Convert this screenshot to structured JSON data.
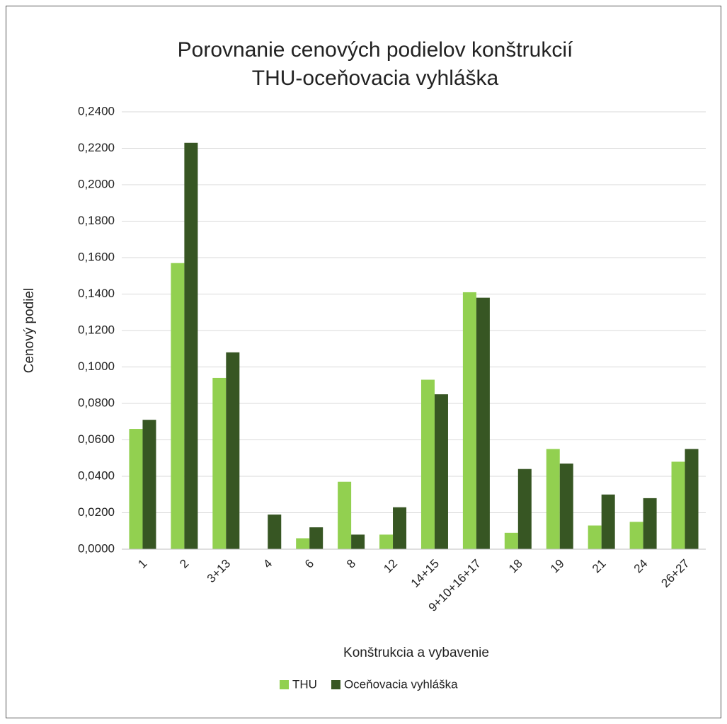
{
  "chart_data": {
    "type": "bar",
    "title": [
      "Porovnanie cenových podielov konštrukcií",
      "THU-oceňovacia vyhláška"
    ],
    "x_label": "Konštrukcia a vybavenie",
    "y_label": "Cenový podiel",
    "categories": [
      "1",
      "2",
      "3+13",
      "4",
      "6",
      "8",
      "12",
      "14+15",
      "9+10+16+17",
      "18",
      "19",
      "21",
      "24",
      "26+27"
    ],
    "series": [
      {
        "name": "THU",
        "color": "#92d050",
        "values": [
          0.066,
          0.157,
          0.094,
          0,
          0.006,
          0.037,
          0.008,
          0.093,
          0.141,
          0.009,
          0.055,
          0.013,
          0.015,
          0.048
        ]
      },
      {
        "name": "Oceňovacia vyhláška",
        "color": "#375623",
        "values": [
          0.071,
          0.223,
          0.108,
          0.019,
          0.012,
          0.008,
          0.023,
          0.085,
          0.138,
          0.044,
          0.047,
          0.03,
          0.028,
          0.055
        ]
      }
    ],
    "ylim": [
      0,
      0.24
    ],
    "yticks": [
      {
        "value": 0,
        "label": "0,0000"
      },
      {
        "value": 0.02,
        "label": "0,0200"
      },
      {
        "value": 0.04,
        "label": "0,0400"
      },
      {
        "value": 0.06,
        "label": "0,0600"
      },
      {
        "value": 0.08,
        "label": "0,0800"
      },
      {
        "value": 0.1,
        "label": "0,1000"
      },
      {
        "value": 0.12,
        "label": "0,1200"
      },
      {
        "value": 0.14,
        "label": "0,1400"
      },
      {
        "value": 0.16,
        "label": "0,1600"
      },
      {
        "value": 0.18,
        "label": "0,1800"
      },
      {
        "value": 0.2,
        "label": "0,2000"
      },
      {
        "value": 0.22,
        "label": "0,2200"
      },
      {
        "value": 0.24,
        "label": "0,2400"
      }
    ],
    "grid": true,
    "legend": "bottom"
  }
}
